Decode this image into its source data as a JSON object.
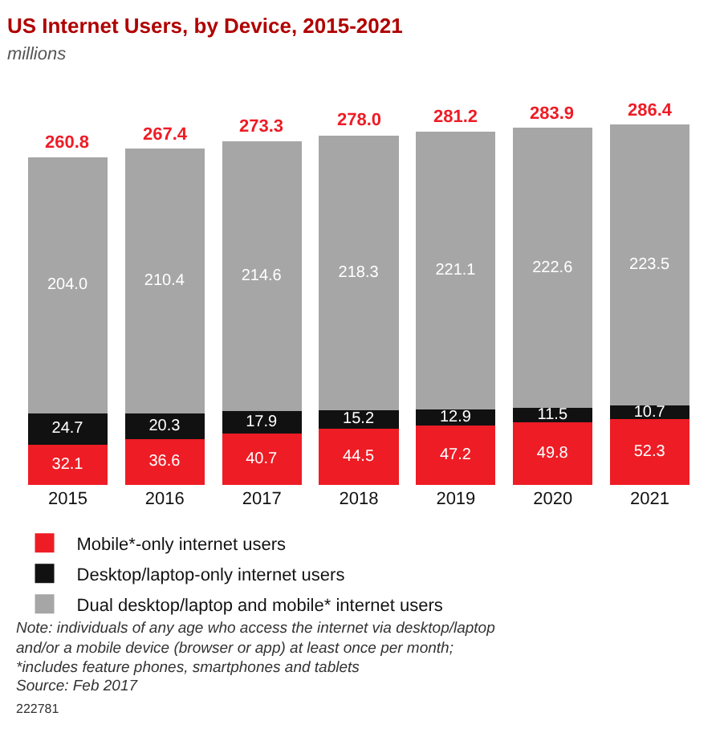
{
  "chart_data": {
    "type": "bar",
    "stacked": true,
    "title": "US Internet Users, by Device, 2015-2021",
    "subtitle": "millions",
    "categories": [
      "2015",
      "2016",
      "2017",
      "2018",
      "2019",
      "2020",
      "2021"
    ],
    "series": [
      {
        "name": "Mobile*-only internet users",
        "color": "#ee1c25",
        "values": [
          32.1,
          36.6,
          40.7,
          44.5,
          47.2,
          49.8,
          52.3
        ],
        "value_labels": [
          "32.1",
          "36.6",
          "40.7",
          "44.5",
          "47.2",
          "49.8",
          "52.3"
        ]
      },
      {
        "name": "Desktop/laptop-only internet users",
        "color": "#111111",
        "values": [
          24.7,
          20.3,
          17.9,
          15.2,
          12.9,
          11.5,
          10.7
        ],
        "value_labels": [
          "24.7",
          "20.3",
          "17.9",
          "15.2",
          "12.9",
          "11.5",
          "10.7"
        ]
      },
      {
        "name": "Dual desktop/laptop and mobile* internet users",
        "color": "#a6a6a6",
        "values": [
          204.0,
          210.4,
          214.6,
          218.3,
          221.1,
          222.6,
          223.5
        ],
        "value_labels": [
          "204.0",
          "210.4",
          "214.6",
          "218.3",
          "221.1",
          "222.6",
          "223.5"
        ]
      }
    ],
    "totals": [
      "260.8",
      "267.4",
      "273.3",
      "278.0",
      "281.2",
      "283.9",
      "286.4"
    ],
    "tick_labels": "x",
    "legend": "bottom",
    "annotations": [
      "Note: individuals of any age who access the internet via desktop/laptop and/or a mobile device (browser or app) at least once per month; *includes feature phones, smartphones and tablets",
      "Source: Feb 2017",
      "222781"
    ]
  }
}
